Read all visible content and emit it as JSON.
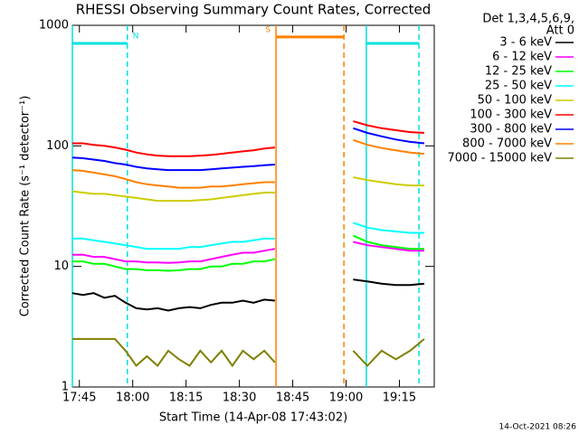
{
  "chart_data": {
    "type": "line",
    "title": "RHESSI Observing Summary Count Rates, Corrected",
    "ylabel": "Corrected Count Rate (s⁻¹ detector⁻¹)",
    "xlabel": "Start Time (14-Apr-08 17:43:02)",
    "legend_header": [
      "Det 1,3,4,5,6,9,",
      "Att 0"
    ],
    "footer": "14-Oct-2021 08:26",
    "log_y": true,
    "ylim": [
      1,
      1000
    ],
    "yticks": [
      1,
      10,
      100,
      1000
    ],
    "xlim": [
      1063.03,
      1164.8
    ],
    "xticks": [
      {
        "value": 1065,
        "label": "17:45"
      },
      {
        "value": 1080,
        "label": "18:00"
      },
      {
        "value": 1095,
        "label": "18:15"
      },
      {
        "value": 1110,
        "label": "18:30"
      },
      {
        "value": 1125,
        "label": "18:45"
      },
      {
        "value": 1140,
        "label": "19:00"
      },
      {
        "value": 1155,
        "label": "19:15"
      }
    ],
    "x": [
      1063,
      1066,
      1069,
      1072,
      1075,
      1078,
      1081,
      1084,
      1087,
      1090,
      1093,
      1096,
      1099,
      1102,
      1105,
      1108,
      1111,
      1114,
      1117,
      1120,
      1130,
      1142,
      1146,
      1150,
      1154,
      1158,
      1162
    ],
    "series": [
      {
        "name": "3 - 6 keV",
        "color": "#000000",
        "values": [
          6,
          5.8,
          6,
          5.5,
          5.7,
          5,
          4.5,
          4.4,
          4.5,
          4.3,
          4.5,
          4.6,
          4.5,
          4.8,
          5,
          5,
          5.2,
          5,
          5.3,
          5.2,
          null,
          7.8,
          7.5,
          7.2,
          7,
          7,
          7.2
        ]
      },
      {
        "name": "6 - 12 keV",
        "color": "#ff00ff",
        "values": [
          12.5,
          12.5,
          12,
          12,
          11.5,
          11,
          11,
          10.8,
          10.8,
          10.7,
          10.8,
          11,
          11,
          11.5,
          12,
          12.5,
          13,
          13,
          13.5,
          14,
          null,
          16,
          15,
          14.5,
          14,
          13.5,
          13.5
        ]
      },
      {
        "name": "12 - 25 keV",
        "color": "#00ff00",
        "values": [
          11,
          11,
          10.5,
          10.5,
          10,
          9.5,
          9.5,
          9.3,
          9.3,
          9.2,
          9.3,
          9.5,
          9.5,
          10,
          10,
          10.5,
          10.5,
          11,
          11,
          11.5,
          null,
          18,
          16,
          15,
          14.5,
          14,
          14
        ]
      },
      {
        "name": "25 - 50 keV",
        "color": "#00ffff",
        "values": [
          17,
          17,
          16.5,
          16,
          15.5,
          15,
          14.5,
          14,
          14,
          14,
          14,
          14.5,
          14.5,
          15,
          15.5,
          16,
          16,
          16.5,
          17,
          17,
          null,
          23,
          21,
          20,
          19.5,
          19,
          19
        ]
      },
      {
        "name": "50 - 100 keV",
        "color": "#cccc00",
        "values": [
          42,
          41,
          40,
          40,
          39,
          38,
          37,
          36,
          35,
          35,
          35,
          35,
          35.5,
          36,
          37,
          38,
          39,
          40,
          41,
          41,
          null,
          55,
          52,
          50,
          48,
          47,
          47
        ]
      },
      {
        "name": "100 - 300 keV",
        "color": "#ff0000",
        "values": [
          105,
          105,
          102,
          100,
          97,
          93,
          88,
          85,
          83,
          82,
          82,
          82,
          83,
          84,
          86,
          88,
          90,
          92,
          95,
          97,
          null,
          160,
          148,
          140,
          135,
          130,
          128
        ]
      },
      {
        "name": "300 - 800 keV",
        "color": "#0000ff",
        "values": [
          80,
          79,
          77,
          75,
          72,
          70,
          67,
          65,
          64,
          63,
          63,
          63,
          63,
          64,
          65,
          66,
          67,
          68,
          69,
          70,
          null,
          140,
          128,
          120,
          113,
          108,
          105
        ]
      },
      {
        "name": "800 - 7000 keV",
        "color": "#ff8000",
        "values": [
          63,
          62,
          60,
          58,
          56,
          53,
          50,
          48,
          47,
          46,
          45,
          45,
          45,
          46,
          46,
          47,
          48,
          49,
          50,
          50,
          null,
          112,
          102,
          96,
          92,
          88,
          86
        ]
      },
      {
        "name": "7000 - 15000 keV",
        "color": "#808000",
        "values": [
          2.5,
          2.5,
          2.5,
          2.5,
          2.5,
          2,
          1.5,
          1.8,
          1.5,
          2,
          1.7,
          1.5,
          2,
          1.6,
          2,
          1.5,
          2,
          1.7,
          2,
          1.6,
          null,
          2,
          1.5,
          2,
          1.7,
          2,
          2.5
        ]
      }
    ],
    "intervals": [
      {
        "label": "N",
        "color": "#00e0e0",
        "start": 1063.03,
        "end": 1078.5,
        "level": 708
      },
      {
        "label": "S",
        "color": "#ff8000",
        "start": 1120.3,
        "end": 1139.4,
        "level": 800
      },
      {
        "color": "#00e0e0",
        "start": 1145.7,
        "end": 1160.5,
        "level": 708
      }
    ]
  }
}
